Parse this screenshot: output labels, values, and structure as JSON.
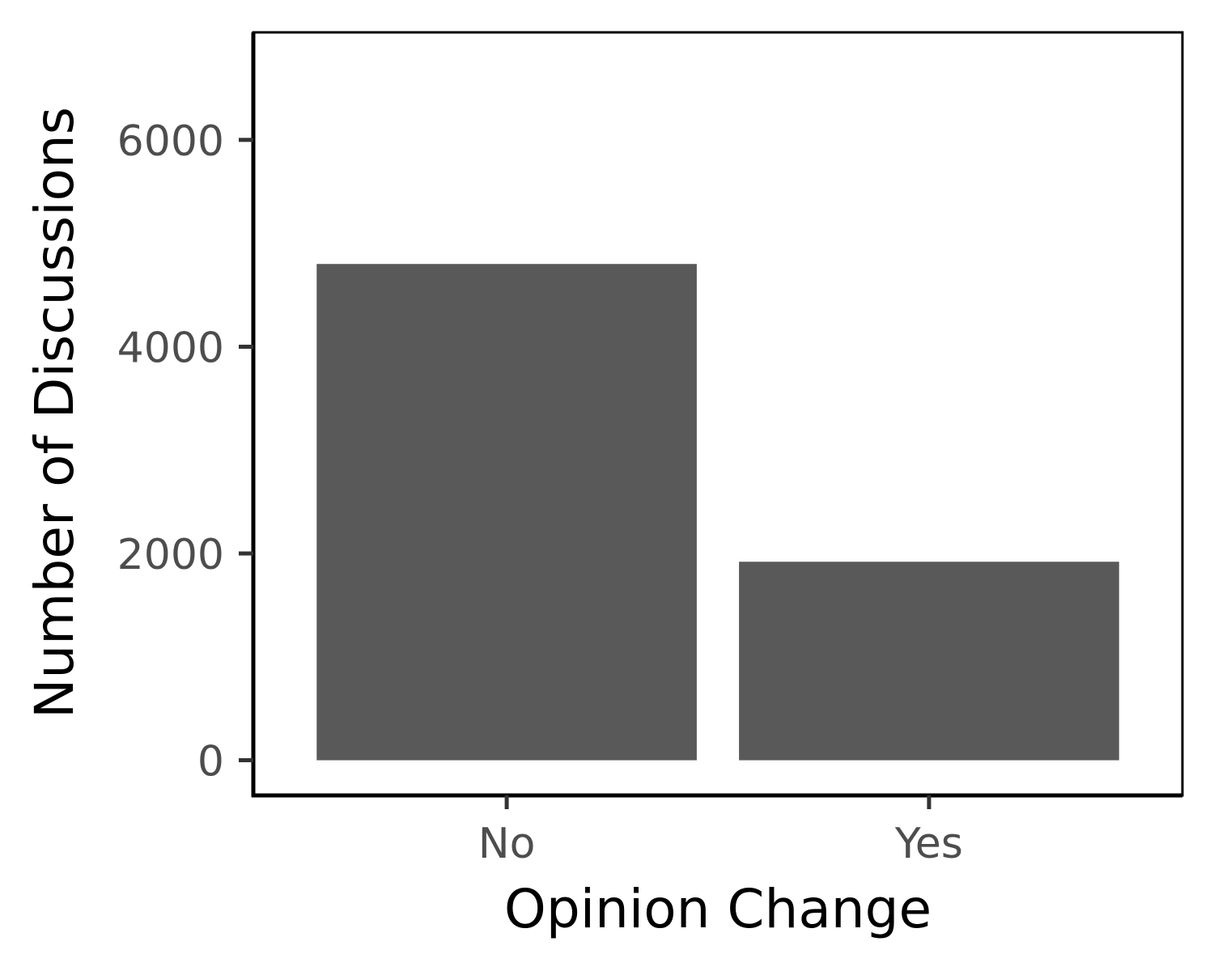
{
  "chart_data": {
    "type": "bar",
    "categories": [
      "No",
      "Yes"
    ],
    "values": [
      4800,
      1920
    ],
    "title": "",
    "xlabel": "Opinion Change",
    "ylabel": "Number of Discussions",
    "ylim": [
      -340,
      7040
    ],
    "yticks": [
      0,
      2000,
      4000,
      6000
    ],
    "ytick_labels": [
      "0",
      "2000",
      "4000",
      "6000"
    ],
    "grid": false,
    "legend": "none",
    "bar_color": "#595959",
    "axis_color": "#000000",
    "tick_label_color": "#4d4d4d"
  }
}
